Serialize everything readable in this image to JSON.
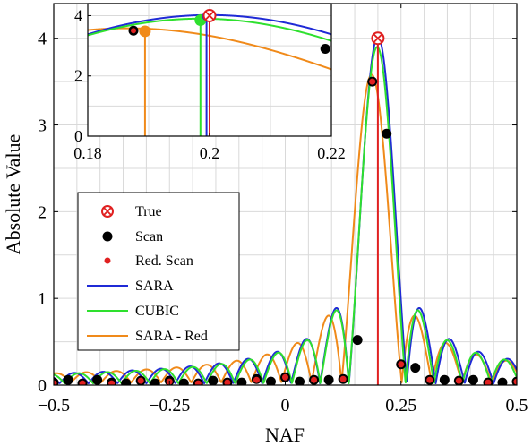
{
  "chart_data": {
    "type": "line",
    "xlabel": "NAF",
    "ylabel": "Absolute Value",
    "xlim": [
      -0.5,
      0.5
    ],
    "ylim": [
      0,
      4.4
    ],
    "grid": true,
    "legend_position": "left",
    "x_ticks": [
      "−0.5",
      "−0.25",
      "0",
      "0.25",
      "0.5"
    ],
    "x_tick_values": [
      -0.5,
      -0.25,
      0,
      0.25,
      0.5
    ],
    "y_ticks": [
      "0",
      "1",
      "2",
      "3",
      "4"
    ],
    "y_tick_values": [
      0,
      1,
      2,
      3,
      4
    ],
    "series": [
      {
        "name": "True",
        "kind": "marker",
        "color": "#e02020",
        "x": [
          0.2
        ],
        "y": [
          4
        ]
      },
      {
        "name": "Scan",
        "kind": "marker",
        "color": "#000000",
        "x": [
          -0.5,
          -0.469,
          -0.438,
          -0.406,
          -0.375,
          -0.344,
          -0.312,
          -0.281,
          -0.25,
          -0.219,
          -0.188,
          -0.156,
          -0.125,
          -0.094,
          -0.062,
          -0.031,
          0,
          0.031,
          0.062,
          0.094,
          0.125,
          0.156,
          0.188,
          0.219,
          0.25,
          0.281,
          0.312,
          0.344,
          0.375,
          0.406,
          0.438,
          0.469,
          0.5
        ],
        "y": [
          0.03,
          0.06,
          0.02,
          0.06,
          0.03,
          0.02,
          0.05,
          0.02,
          0.05,
          0.02,
          0.02,
          0.05,
          0.03,
          0.03,
          0.07,
          0.04,
          0.09,
          0.04,
          0.06,
          0.06,
          0.07,
          0.52,
          3.5,
          2.9,
          0.24,
          0.2,
          0.06,
          0.06,
          0.05,
          0.06,
          0.03,
          0.03,
          0.04
        ]
      },
      {
        "name": "Red. Scan",
        "kind": "marker",
        "color": "#e02020",
        "x": [
          -0.5,
          -0.438,
          -0.375,
          -0.312,
          -0.25,
          -0.188,
          -0.125,
          -0.062,
          0,
          0.062,
          0.125,
          0.188,
          0.25,
          0.312,
          0.375,
          0.438,
          0.5
        ],
        "y": [
          0.02,
          0.02,
          0.02,
          0.05,
          0.04,
          0.02,
          0.03,
          0.06,
          0.09,
          0.06,
          0.07,
          3.5,
          0.24,
          0.06,
          0.05,
          0.03,
          0.04
        ]
      },
      {
        "name": "SARA",
        "kind": "line",
        "color": "#1f2ad6"
      },
      {
        "name": "CUBIC",
        "kind": "line",
        "color": "#2ee02e"
      },
      {
        "name": "SARA - Red",
        "kind": "line",
        "color": "#f08a1a"
      }
    ],
    "inset": {
      "xlim": [
        0.18,
        0.22
      ],
      "ylim": [
        0,
        4.4
      ],
      "x_ticks": [
        "0.18",
        "0.2",
        "0.22"
      ],
      "x_tick_values": [
        0.18,
        0.2,
        0.22
      ],
      "y_ticks": [
        "0",
        "2",
        "4"
      ],
      "y_tick_values": [
        0,
        2,
        4
      ],
      "markers": [
        {
          "series": "True",
          "x": 0.2,
          "y": 4
        },
        {
          "series": "Scan",
          "x": 0.1875,
          "y": 3.5
        },
        {
          "series": "Scan",
          "x": 0.219,
          "y": 2.9
        },
        {
          "series": "Red. Scan",
          "x": 0.1875,
          "y": 3.5
        },
        {
          "series": "SARA - Red",
          "x": 0.1894,
          "y": 3.48
        },
        {
          "series": "CUBIC",
          "x": 0.1985,
          "y": 3.85
        },
        {
          "series": "SARA",
          "x": 0.1995,
          "y": 3.98
        }
      ]
    }
  }
}
